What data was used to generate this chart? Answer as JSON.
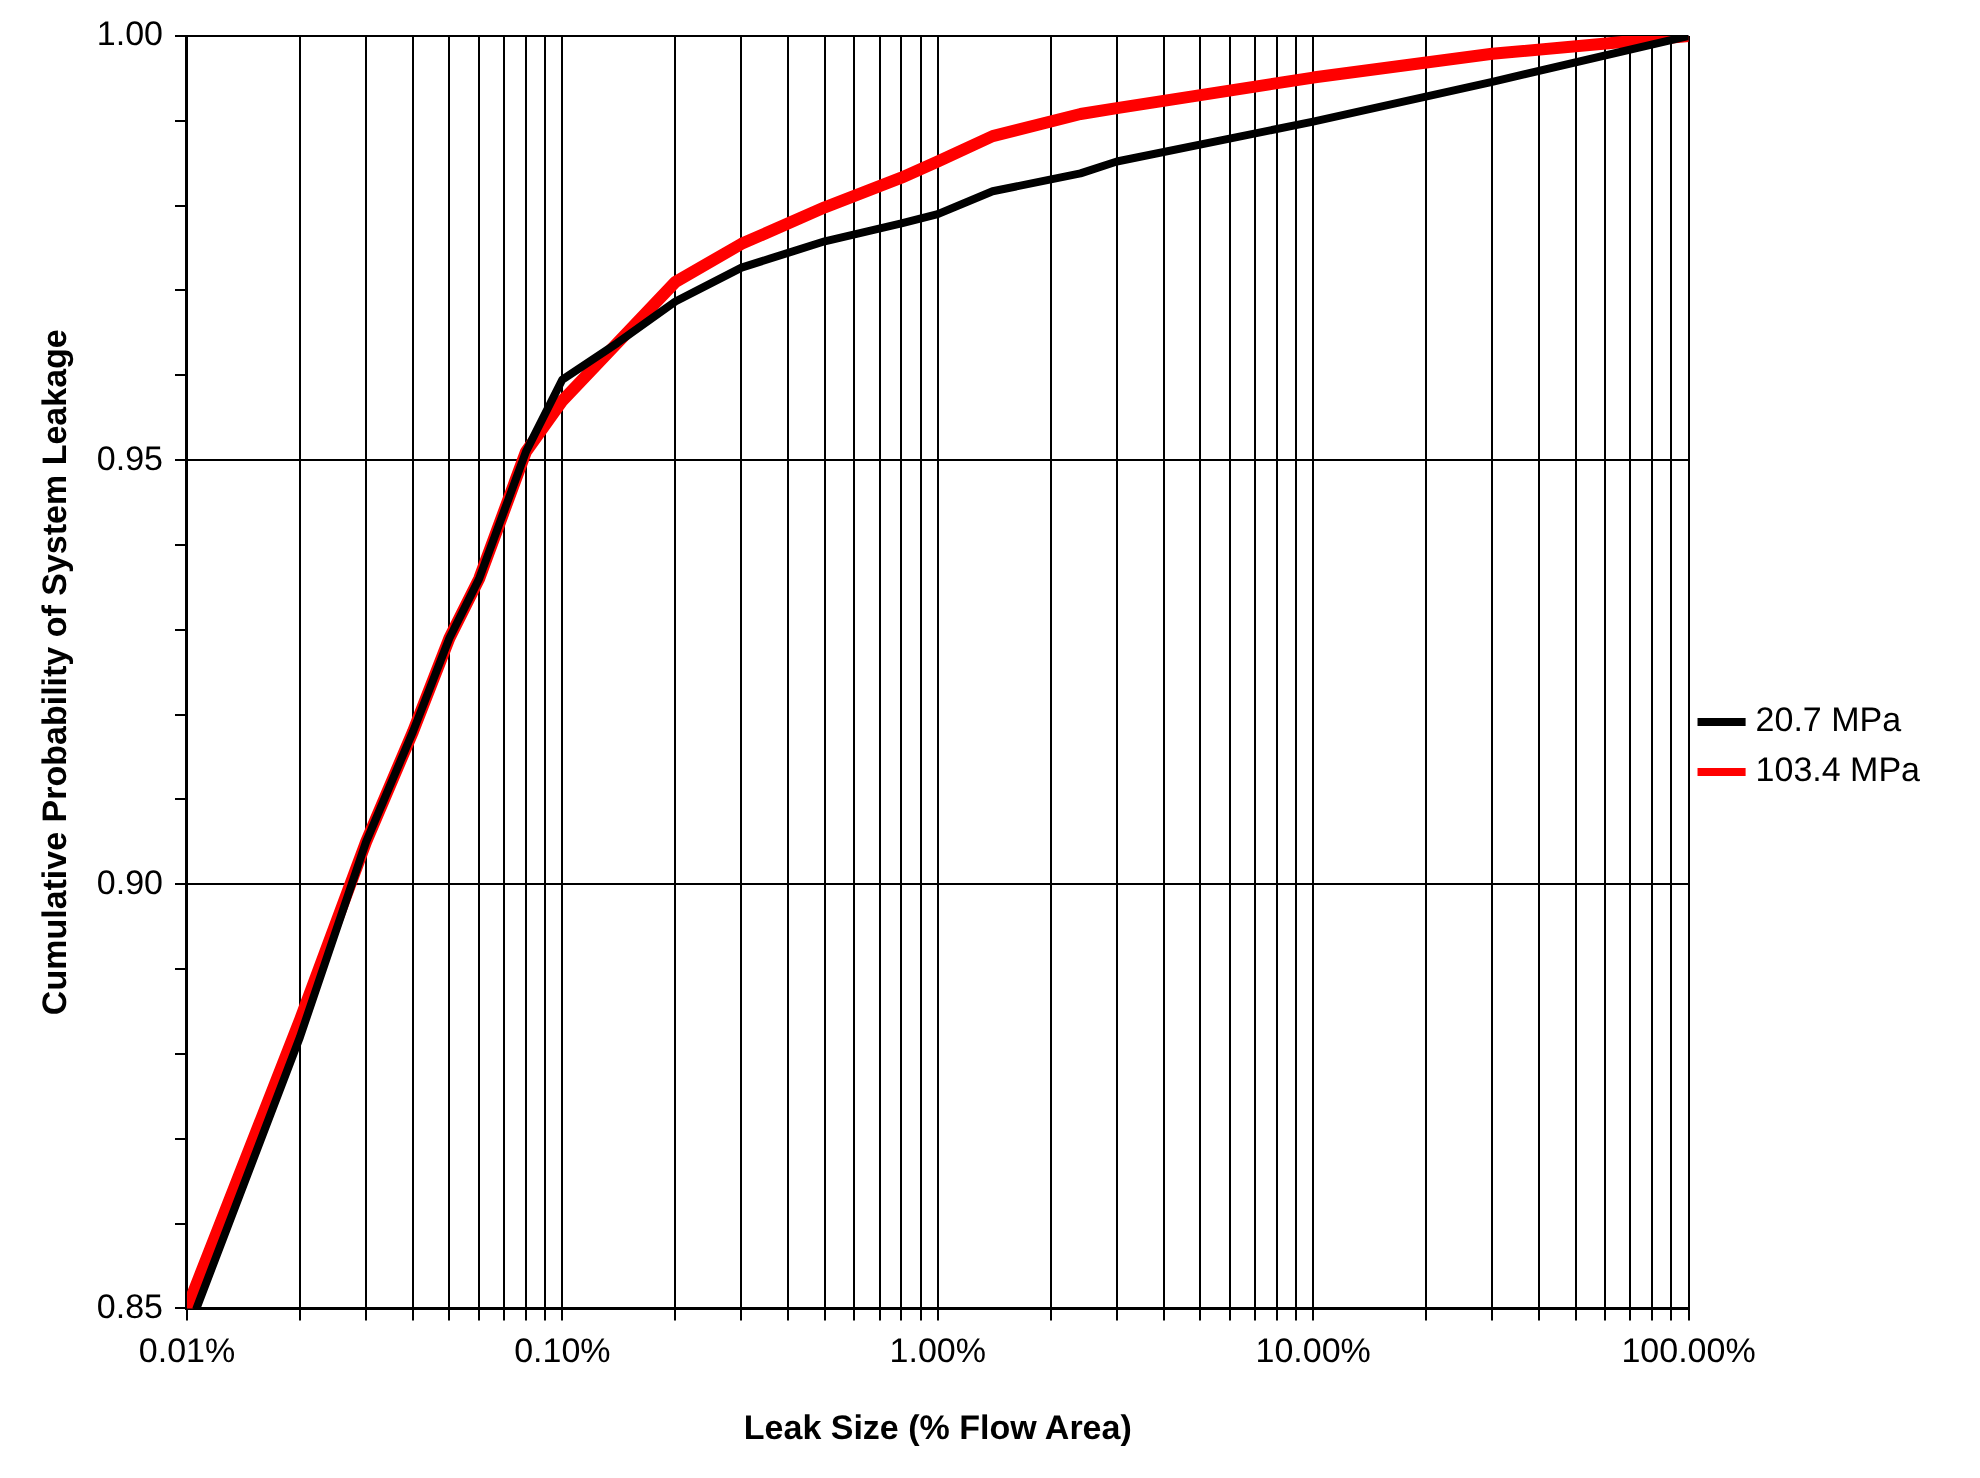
{
  "chart_data": {
    "type": "line",
    "xlabel": "Leak Size (% Flow Area)",
    "ylabel": "Cumulative Probability of System Leakage",
    "log": "x",
    "xlim": [
      0.01,
      100
    ],
    "ylim": [
      0.85,
      1.0
    ],
    "xticks": [
      {
        "value": 0.01,
        "label": "0.01%"
      },
      {
        "value": 0.02,
        "label": null
      },
      {
        "value": 0.03,
        "label": null
      },
      {
        "value": 0.04,
        "label": null
      },
      {
        "value": 0.05,
        "label": null
      },
      {
        "value": 0.06,
        "label": null
      },
      {
        "value": 0.07,
        "label": null
      },
      {
        "value": 0.08,
        "label": null
      },
      {
        "value": 0.09,
        "label": null
      },
      {
        "value": 0.1,
        "label": "0.10%"
      },
      {
        "value": 0.2,
        "label": null
      },
      {
        "value": 0.3,
        "label": null
      },
      {
        "value": 0.4,
        "label": null
      },
      {
        "value": 0.5,
        "label": null
      },
      {
        "value": 0.6,
        "label": null
      },
      {
        "value": 0.7,
        "label": null
      },
      {
        "value": 0.8,
        "label": null
      },
      {
        "value": 0.9,
        "label": null
      },
      {
        "value": 1,
        "label": "1.00%"
      },
      {
        "value": 2,
        "label": null
      },
      {
        "value": 3,
        "label": null
      },
      {
        "value": 4,
        "label": null
      },
      {
        "value": 5,
        "label": null
      },
      {
        "value": 6,
        "label": null
      },
      {
        "value": 7,
        "label": null
      },
      {
        "value": 8,
        "label": null
      },
      {
        "value": 9,
        "label": null
      },
      {
        "value": 10,
        "label": "10.00%"
      },
      {
        "value": 20,
        "label": null
      },
      {
        "value": 30,
        "label": null
      },
      {
        "value": 40,
        "label": null
      },
      {
        "value": 50,
        "label": null
      },
      {
        "value": 60,
        "label": null
      },
      {
        "value": 70,
        "label": null
      },
      {
        "value": 80,
        "label": null
      },
      {
        "value": 90,
        "label": null
      },
      {
        "value": 100,
        "label": "100.00%"
      }
    ],
    "yticks": [
      {
        "value": 0.85,
        "label": "0.85"
      },
      {
        "value": 0.86,
        "label": null
      },
      {
        "value": 0.87,
        "label": null
      },
      {
        "value": 0.88,
        "label": null
      },
      {
        "value": 0.89,
        "label": null
      },
      {
        "value": 0.9,
        "label": "0.90"
      },
      {
        "value": 0.91,
        "label": null
      },
      {
        "value": 0.92,
        "label": null
      },
      {
        "value": 0.93,
        "label": null
      },
      {
        "value": 0.94,
        "label": null
      },
      {
        "value": 0.95,
        "label": "0.95"
      },
      {
        "value": 0.96,
        "label": null
      },
      {
        "value": 0.97,
        "label": null
      },
      {
        "value": 0.98,
        "label": null
      },
      {
        "value": 0.99,
        "label": null
      },
      {
        "value": 1.0,
        "label": "1.00"
      }
    ],
    "grid": true,
    "legend": "right",
    "marker": "none",
    "line_style": "solid",
    "series": [
      {
        "name": "20.7 MPa",
        "color": "#000000",
        "x": [
          0.0106,
          0.02,
          0.03,
          0.04,
          0.05,
          0.06,
          0.08,
          0.1,
          0.14,
          0.2,
          0.3,
          0.5,
          0.8,
          1,
          1.4,
          2.4,
          3,
          10,
          30,
          100
        ],
        "values": [
          0.85,
          0.882,
          0.905,
          0.918,
          0.929,
          0.936,
          0.951,
          0.9595,
          0.9638,
          0.9687,
          0.9727,
          0.9758,
          0.9779,
          0.979,
          0.9817,
          0.9838,
          0.9852,
          0.9899,
          0.9946,
          1.0
        ]
      },
      {
        "name": "103.4 MPa",
        "color": "#ff0000",
        "x": [
          0.01,
          0.02,
          0.03,
          0.04,
          0.05,
          0.06,
          0.08,
          0.1,
          0.14,
          0.2,
          0.3,
          0.5,
          0.8,
          1,
          1.4,
          2.4,
          3,
          10,
          30,
          100
        ],
        "values": [
          0.85,
          0.884,
          0.905,
          0.918,
          0.929,
          0.936,
          0.951,
          0.957,
          0.9638,
          0.971,
          0.9755,
          0.9798,
          0.9833,
          0.9852,
          0.9882,
          0.9908,
          0.9915,
          0.9951,
          0.9979,
          1.0
        ]
      }
    ]
  }
}
